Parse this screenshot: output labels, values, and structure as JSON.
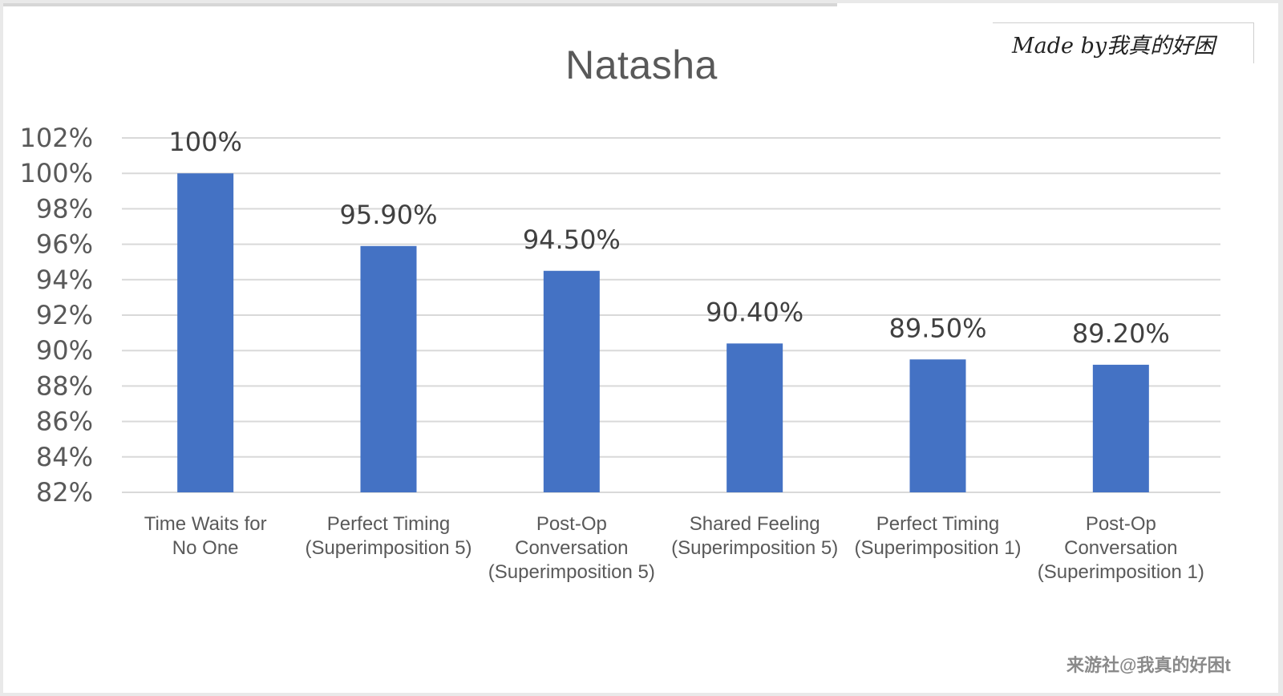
{
  "chart_data": {
    "type": "bar",
    "title": "Natasha",
    "categories": [
      [
        "Time Waits for",
        "No One"
      ],
      [
        "Perfect Timing",
        "(Superimposition 5)"
      ],
      [
        "Post-Op",
        "Conversation",
        "(Superimposition 5)"
      ],
      [
        "Shared Feeling",
        "(Superimposition 5)"
      ],
      [
        "Perfect Timing",
        "(Superimposition 1)"
      ],
      [
        "Post-Op",
        "Conversation",
        "(Superimposition 1)"
      ]
    ],
    "values": [
      100,
      95.9,
      94.5,
      90.4,
      89.5,
      89.2
    ],
    "data_labels": [
      "100%",
      "95.90%",
      "94.50%",
      "90.40%",
      "89.50%",
      "89.20%"
    ],
    "yticks": [
      "82%",
      "84%",
      "86%",
      "88%",
      "90%",
      "92%",
      "94%",
      "96%",
      "98%",
      "100%",
      "102%"
    ],
    "ylim": [
      82,
      102
    ],
    "grid": true,
    "bar_color": "#4472c4",
    "grid_color": "#d9d9d9"
  },
  "watermark": "Made by我真的好困",
  "footer_credit": "来游社@我真的好困t"
}
